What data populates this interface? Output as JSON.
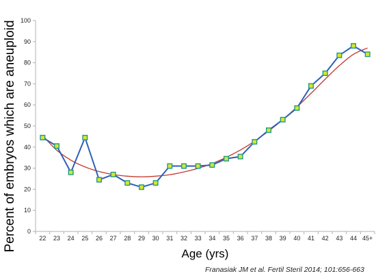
{
  "chart_data": {
    "type": "line",
    "title": "",
    "xlabel": "Age (yrs)",
    "ylabel": "Percent of embryos which are aneuploid",
    "ylim": [
      0,
      100
    ],
    "yticks": [
      0,
      10,
      20,
      30,
      40,
      50,
      60,
      70,
      80,
      90,
      100
    ],
    "grid": false,
    "legend": "none",
    "categories": [
      "22",
      "23",
      "24",
      "25",
      "26",
      "27",
      "28",
      "29",
      "30",
      "31",
      "32",
      "33",
      "34",
      "35",
      "36",
      "37",
      "38",
      "39",
      "40",
      "41",
      "42",
      "43",
      "44",
      "45+"
    ],
    "series": [
      {
        "values": [
          44.5,
          40.5,
          28,
          44.5,
          24.5,
          27,
          23,
          21,
          23,
          31,
          31,
          31,
          31.5,
          34.5,
          35.5,
          42.5,
          48,
          53,
          58.5,
          69,
          75,
          83.5,
          88,
          84
        ],
        "color": "#2f5fb8",
        "marker_color": "#d7e62b",
        "marker_edge": "#1e9a8c"
      },
      {
        "values": [
          45.5,
          38.5,
          33.8,
          30.6,
          28.4,
          27.0,
          26.2,
          25.9,
          26.2,
          26.9,
          28.2,
          29.9,
          32.2,
          35.1,
          38.6,
          42.8,
          47.6,
          53.0,
          59.0,
          65.5,
          72.2,
          78.6,
          84.0,
          87.0
        ],
        "color": "#c0392b"
      }
    ],
    "axis_color": "#b0b0b0"
  },
  "citation": "Franasiak JM et al. Fertil Steril 2014; 101:656-663"
}
